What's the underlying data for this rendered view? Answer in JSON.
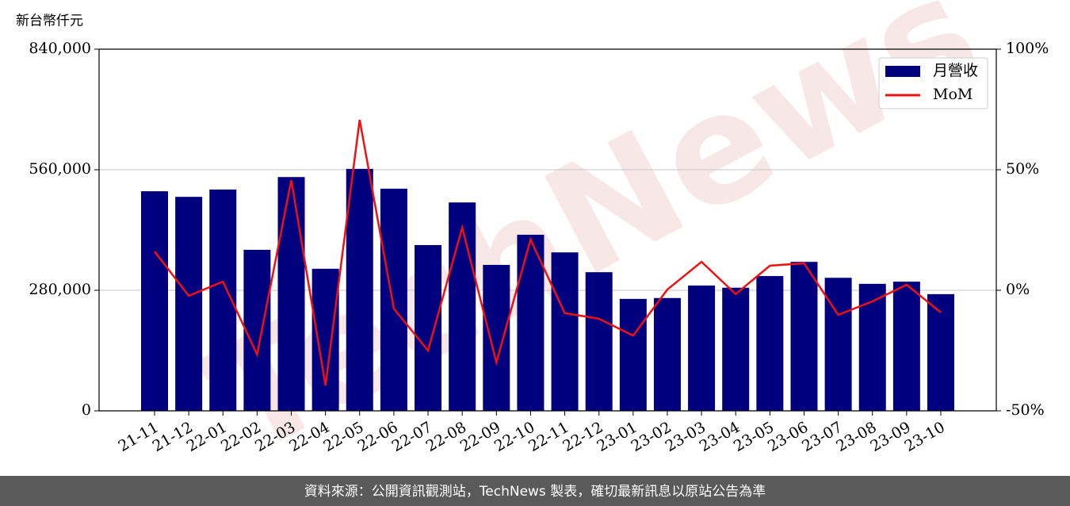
{
  "chart_data": {
    "type": "bar",
    "y_label": "新台幣仟元",
    "watermark": "TechNews",
    "footer": "資料來源：公開資訊觀測站，TechNews 製表，確切最新訊息以原站公告為準",
    "categories": [
      "21-11",
      "21-12",
      "22-01",
      "22-02",
      "22-03",
      "22-04",
      "22-05",
      "22-06",
      "22-07",
      "22-08",
      "22-09",
      "22-10",
      "22-11",
      "22-12",
      "23-01",
      "23-02",
      "23-03",
      "23-04",
      "23-05",
      "23-06",
      "23-07",
      "23-08",
      "23-09",
      "23-10"
    ],
    "series": [
      {
        "name": "月營收",
        "type": "bar",
        "color": "#00007f",
        "axis": "y",
        "values": [
          510000,
          497000,
          514000,
          374000,
          543000,
          330000,
          562000,
          516000,
          385000,
          484000,
          339000,
          409000,
          368000,
          322000,
          260000,
          262000,
          291000,
          286000,
          313000,
          346000,
          309000,
          295000,
          300000,
          271000
        ]
      },
      {
        "name": "MoM",
        "type": "line",
        "color": "#ee1111",
        "axis": "y2",
        "values": [
          16.1,
          -2.3,
          3.6,
          -26.6,
          45.7,
          -39.5,
          70.7,
          -7.6,
          -25,
          26,
          -29.9,
          21,
          -9.5,
          -11.8,
          -18.8,
          0.3,
          11.8,
          -1.6,
          10.2,
          11.2,
          -10.2,
          -4.6,
          2.3,
          -9.2
        ]
      }
    ],
    "ylim": [
      0,
      840000
    ],
    "yticks": [
      0,
      {
        "value": 280000,
        "label": "280,000"
      },
      {
        "value": 560000,
        "label": "560,000"
      },
      {
        "value": 840000,
        "label": "840,000"
      }
    ],
    "y2lim": [
      -50,
      100
    ],
    "y2ticks": [
      {
        "value": -50,
        "label": "-50%"
      },
      {
        "value": 0,
        "label": "0%"
      },
      {
        "value": 50,
        "label": "50%"
      },
      {
        "value": 100,
        "label": "100%"
      }
    ],
    "grid": true,
    "legend": "upper right"
  }
}
